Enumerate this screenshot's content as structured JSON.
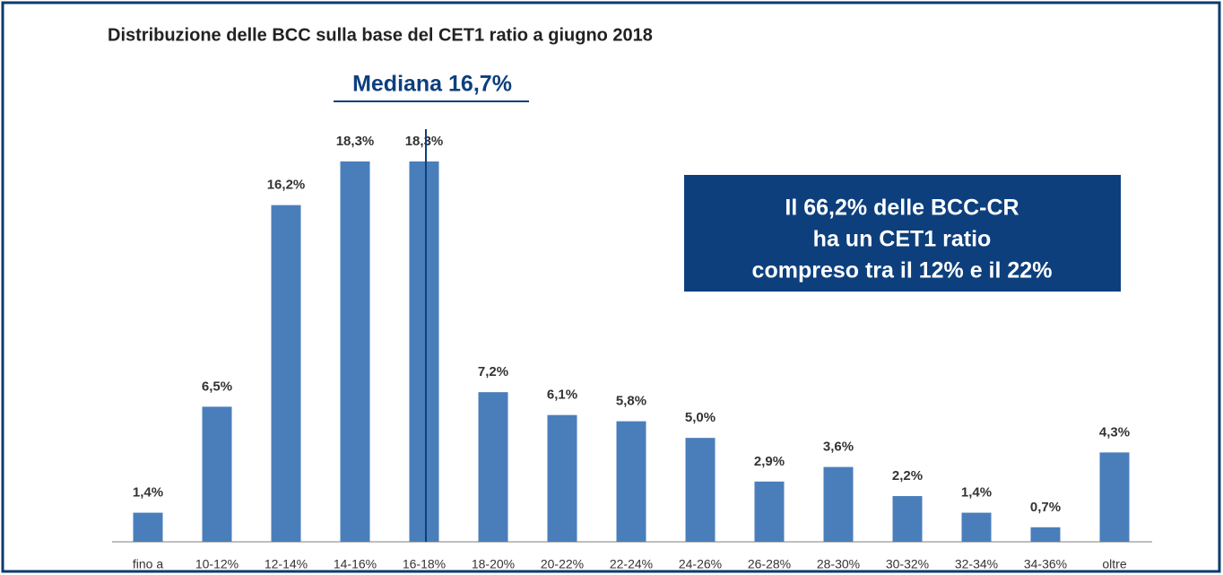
{
  "chart_data": {
    "type": "bar",
    "title": "Distribuzione delle BCC sulla base del CET1 ratio a giugno 2018",
    "categories": [
      "fino a",
      "10-12%",
      "12-14%",
      "14-16%",
      "16-18%",
      "18-20%",
      "20-22%",
      "22-24%",
      "24-26%",
      "26-28%",
      "28-30%",
      "30-32%",
      "32-34%",
      "34-36%",
      "oltre"
    ],
    "values": [
      1.4,
      6.5,
      16.2,
      18.3,
      18.3,
      7.2,
      6.1,
      5.8,
      5.0,
      2.9,
      3.6,
      2.2,
      1.4,
      0.7,
      4.3
    ],
    "value_labels": [
      "1,4%",
      "6,5%",
      "16,2%",
      "18,3%",
      "18,3%",
      "7,2%",
      "6,1%",
      "5,8%",
      "5,0%",
      "2,9%",
      "3,6%",
      "2,2%",
      "1,4%",
      "0,7%",
      "4,3%"
    ],
    "color": "#4a7ebb",
    "annotations": {
      "median": "Mediana 16,7%",
      "box": [
        "Il 66,2% delle BCC-CR",
        "ha un CET1 ratio",
        "compreso tra il 12% e il 22%"
      ]
    }
  }
}
